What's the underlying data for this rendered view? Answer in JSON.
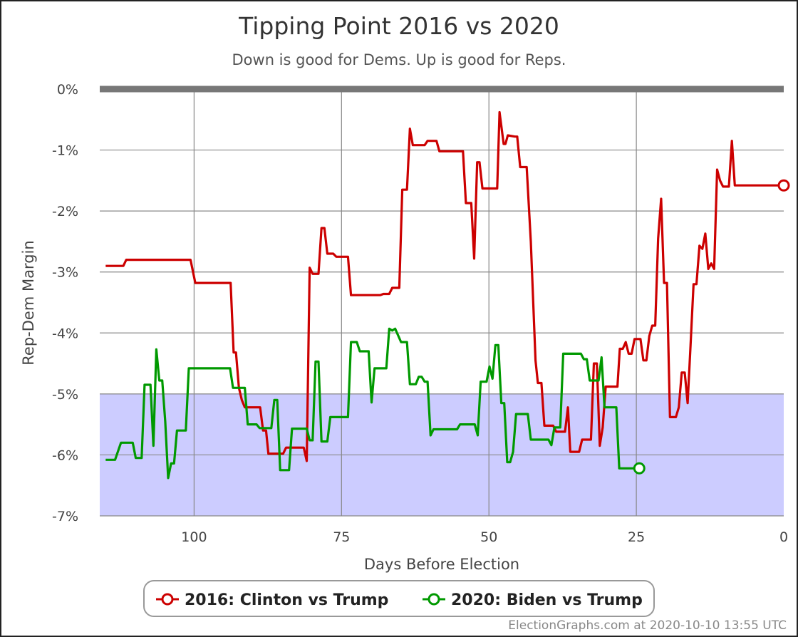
{
  "chart_data": {
    "type": "line",
    "title": "Tipping Point 2016 vs 2020",
    "subtitle": "Down is good for Dems. Up is good for Reps.",
    "xlabel": "Days Before Election",
    "ylabel": "Rep-Dem Margin",
    "xlim": [
      116,
      0
    ],
    "ylim": [
      -7,
      0
    ],
    "x_ticks": [
      100,
      75,
      50,
      25,
      0
    ],
    "y_ticks": [
      0,
      -1,
      -2,
      -3,
      -4,
      -5,
      -6,
      -7
    ],
    "y_tick_labels": [
      "0%",
      "-1%",
      "-2%",
      "-3%",
      "-4%",
      "-5%",
      "-6%",
      "-7%"
    ],
    "shaded_region": {
      "from": -7,
      "to": -5,
      "color": "#ccccff"
    },
    "legend": "bottom-center",
    "series": [
      {
        "name": "2016: Clinton vs Trump",
        "color": "#cc0000",
        "points": [
          [
            115,
            -2.9
          ],
          [
            112,
            -2.9
          ],
          [
            111.5,
            -2.8
          ],
          [
            100.6,
            -2.8
          ],
          [
            99.8,
            -3.18
          ],
          [
            93.8,
            -3.18
          ],
          [
            93.3,
            -4.32
          ],
          [
            92.9,
            -4.32
          ],
          [
            92.4,
            -4.9
          ],
          [
            91.9,
            -5.1
          ],
          [
            91.4,
            -5.22
          ],
          [
            88.8,
            -5.22
          ],
          [
            88.3,
            -5.6
          ],
          [
            87.8,
            -5.6
          ],
          [
            87.4,
            -5.98
          ],
          [
            84.9,
            -5.98
          ],
          [
            84.4,
            -5.88
          ],
          [
            81.4,
            -5.88
          ],
          [
            80.9,
            -6.1
          ],
          [
            80.4,
            -2.93
          ],
          [
            79.9,
            -3.03
          ],
          [
            78.9,
            -3.03
          ],
          [
            78.4,
            -2.28
          ],
          [
            77.9,
            -2.28
          ],
          [
            77.4,
            -2.7
          ],
          [
            76.4,
            -2.7
          ],
          [
            75.9,
            -2.75
          ],
          [
            73.9,
            -2.75
          ],
          [
            73.4,
            -3.38
          ],
          [
            68.4,
            -3.38
          ],
          [
            67.9,
            -3.36
          ],
          [
            66.9,
            -3.36
          ],
          [
            66.4,
            -3.26
          ],
          [
            65.2,
            -3.26
          ],
          [
            64.7,
            -1.65
          ],
          [
            63.9,
            -1.65
          ],
          [
            63.4,
            -0.65
          ],
          [
            62.9,
            -0.92
          ],
          [
            60.9,
            -0.92
          ],
          [
            60.4,
            -0.85
          ],
          [
            58.9,
            -0.85
          ],
          [
            58.4,
            -1.02
          ],
          [
            54.4,
            -1.02
          ],
          [
            53.9,
            -1.87
          ],
          [
            53.0,
            -1.87
          ],
          [
            52.5,
            -2.78
          ],
          [
            52.0,
            -1.2
          ],
          [
            51.6,
            -1.2
          ],
          [
            51.1,
            -1.63
          ],
          [
            48.6,
            -1.63
          ],
          [
            48.2,
            -0.38
          ],
          [
            47.5,
            -0.9
          ],
          [
            47.2,
            -0.9
          ],
          [
            46.8,
            -0.76
          ],
          [
            45.6,
            -0.78
          ],
          [
            45.2,
            -0.78
          ],
          [
            44.7,
            -1.28
          ],
          [
            43.6,
            -1.28
          ],
          [
            42.9,
            -2.5
          ],
          [
            42.1,
            -4.45
          ],
          [
            41.7,
            -4.82
          ],
          [
            41.1,
            -4.82
          ],
          [
            40.6,
            -5.52
          ],
          [
            39.1,
            -5.52
          ],
          [
            38.6,
            -5.62
          ],
          [
            37.1,
            -5.62
          ],
          [
            36.6,
            -5.22
          ],
          [
            36.2,
            -5.95
          ],
          [
            34.7,
            -5.95
          ],
          [
            34.2,
            -5.75
          ],
          [
            32.7,
            -5.75
          ],
          [
            32.2,
            -4.5
          ],
          [
            31.7,
            -4.5
          ],
          [
            31.2,
            -5.85
          ],
          [
            30.7,
            -5.55
          ],
          [
            30.2,
            -4.88
          ],
          [
            28.2,
            -4.88
          ],
          [
            27.8,
            -4.26
          ],
          [
            27.3,
            -4.26
          ],
          [
            26.8,
            -4.15
          ],
          [
            26.3,
            -4.34
          ],
          [
            25.8,
            -4.34
          ],
          [
            25.3,
            -4.1
          ],
          [
            24.3,
            -4.1
          ],
          [
            23.8,
            -4.45
          ],
          [
            23.3,
            -4.45
          ],
          [
            22.8,
            -4.05
          ],
          [
            22.3,
            -3.88
          ],
          [
            21.8,
            -3.88
          ],
          [
            21.3,
            -2.45
          ],
          [
            20.8,
            -1.8
          ],
          [
            20.3,
            -3.18
          ],
          [
            19.8,
            -3.18
          ],
          [
            19.3,
            -5.38
          ],
          [
            18.3,
            -5.38
          ],
          [
            17.8,
            -5.22
          ],
          [
            17.3,
            -4.65
          ],
          [
            16.8,
            -4.65
          ],
          [
            16.3,
            -5.15
          ],
          [
            15.8,
            -4.2
          ],
          [
            15.3,
            -3.2
          ],
          [
            14.8,
            -3.2
          ],
          [
            14.3,
            -2.57
          ],
          [
            13.8,
            -2.62
          ],
          [
            13.3,
            -2.37
          ],
          [
            12.8,
            -2.95
          ],
          [
            12.3,
            -2.86
          ],
          [
            11.8,
            -2.95
          ],
          [
            11.3,
            -1.32
          ],
          [
            10.8,
            -1.5
          ],
          [
            10.3,
            -1.6
          ],
          [
            9.3,
            -1.6
          ],
          [
            8.8,
            -0.85
          ],
          [
            8.3,
            -1.58
          ],
          [
            0,
            -1.58
          ]
        ]
      },
      {
        "name": "2020: Biden vs Trump",
        "color": "#009900",
        "points": [
          [
            115,
            -6.08
          ],
          [
            113.4,
            -6.08
          ],
          [
            112.4,
            -5.8
          ],
          [
            110.4,
            -5.8
          ],
          [
            109.9,
            -6.05
          ],
          [
            108.9,
            -6.05
          ],
          [
            108.4,
            -4.85
          ],
          [
            107.4,
            -4.85
          ],
          [
            106.9,
            -5.85
          ],
          [
            106.4,
            -4.27
          ],
          [
            105.9,
            -4.78
          ],
          [
            105.4,
            -4.78
          ],
          [
            104.9,
            -5.45
          ],
          [
            104.4,
            -6.38
          ],
          [
            103.9,
            -6.14
          ],
          [
            103.4,
            -6.14
          ],
          [
            102.9,
            -5.6
          ],
          [
            101.4,
            -5.6
          ],
          [
            100.9,
            -4.58
          ],
          [
            93.9,
            -4.58
          ],
          [
            93.4,
            -4.9
          ],
          [
            91.4,
            -4.9
          ],
          [
            90.9,
            -5.5
          ],
          [
            89.4,
            -5.5
          ],
          [
            88.9,
            -5.56
          ],
          [
            86.9,
            -5.56
          ],
          [
            86.4,
            -5.1
          ],
          [
            85.9,
            -5.1
          ],
          [
            85.4,
            -6.25
          ],
          [
            83.9,
            -6.25
          ],
          [
            83.4,
            -5.57
          ],
          [
            80.9,
            -5.57
          ],
          [
            80.4,
            -5.76
          ],
          [
            79.9,
            -5.76
          ],
          [
            79.4,
            -4.47
          ],
          [
            78.9,
            -4.47
          ],
          [
            78.4,
            -5.78
          ],
          [
            77.4,
            -5.78
          ],
          [
            76.9,
            -5.38
          ],
          [
            73.9,
            -5.38
          ],
          [
            73.4,
            -4.15
          ],
          [
            72.4,
            -4.15
          ],
          [
            71.9,
            -4.3
          ],
          [
            70.4,
            -4.3
          ],
          [
            69.9,
            -5.14
          ],
          [
            69.4,
            -4.58
          ],
          [
            67.4,
            -4.58
          ],
          [
            66.9,
            -3.93
          ],
          [
            66.4,
            -3.96
          ],
          [
            65.9,
            -3.93
          ],
          [
            64.9,
            -4.15
          ],
          [
            63.9,
            -4.15
          ],
          [
            63.4,
            -4.84
          ],
          [
            62.4,
            -4.84
          ],
          [
            61.9,
            -4.72
          ],
          [
            61.4,
            -4.72
          ],
          [
            60.9,
            -4.8
          ],
          [
            60.4,
            -4.8
          ],
          [
            59.9,
            -5.68
          ],
          [
            59.4,
            -5.58
          ],
          [
            55.4,
            -5.58
          ],
          [
            54.9,
            -5.5
          ],
          [
            52.4,
            -5.5
          ],
          [
            51.9,
            -5.68
          ],
          [
            51.4,
            -4.8
          ],
          [
            50.4,
            -4.8
          ],
          [
            49.9,
            -4.55
          ],
          [
            49.4,
            -4.75
          ],
          [
            48.9,
            -4.2
          ],
          [
            48.4,
            -4.2
          ],
          [
            47.9,
            -5.15
          ],
          [
            47.4,
            -5.15
          ],
          [
            46.9,
            -6.12
          ],
          [
            46.4,
            -6.12
          ],
          [
            45.9,
            -5.95
          ],
          [
            45.4,
            -5.33
          ],
          [
            43.4,
            -5.33
          ],
          [
            42.9,
            -5.75
          ],
          [
            39.9,
            -5.75
          ],
          [
            39.4,
            -5.84
          ],
          [
            38.9,
            -5.55
          ],
          [
            37.9,
            -5.55
          ],
          [
            37.4,
            -4.34
          ],
          [
            34.4,
            -4.34
          ],
          [
            33.9,
            -4.43
          ],
          [
            33.4,
            -4.43
          ],
          [
            32.9,
            -4.78
          ],
          [
            31.4,
            -4.78
          ],
          [
            30.9,
            -4.4
          ],
          [
            30.4,
            -5.22
          ],
          [
            28.4,
            -5.22
          ],
          [
            27.9,
            -6.22
          ],
          [
            24.5,
            -6.22
          ]
        ],
        "end_marker": [
          24.5,
          -6.22
        ]
      }
    ],
    "credit": "ElectionGraphs.com at 2020-10-10 13:55 UTC"
  }
}
